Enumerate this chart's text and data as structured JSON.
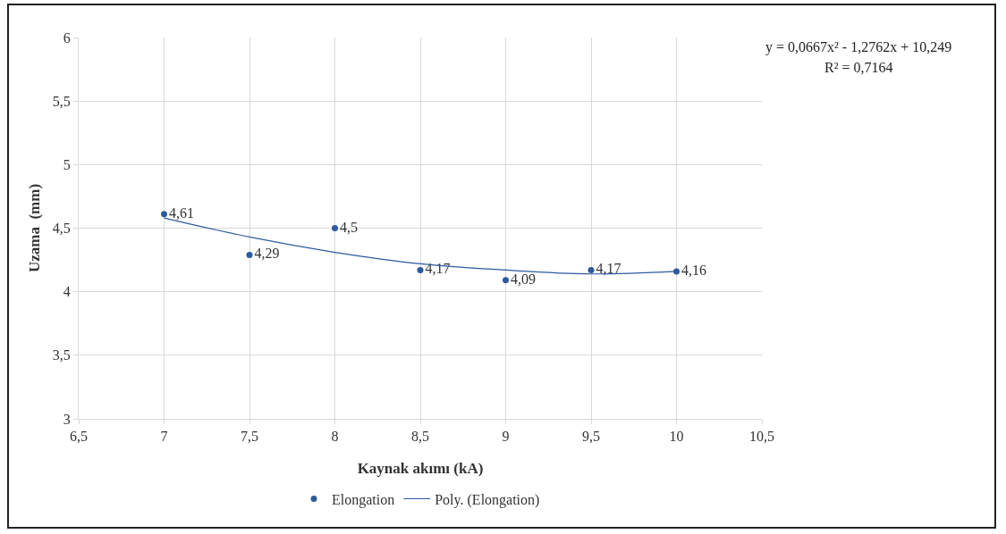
{
  "chart_data": {
    "type": "scatter",
    "xlabel": "Kaynak akımı (kA)",
    "ylabel": "Uzama  (mm)",
    "xlim": [
      6.5,
      10.5
    ],
    "xticks": [
      {
        "value": 6.5,
        "label": "6,5"
      },
      7,
      {
        "value": 7.5,
        "label": "7,5"
      },
      8,
      {
        "value": 8.5,
        "label": "8,5"
      },
      9,
      {
        "value": 9.5,
        "label": "9,5"
      },
      10,
      {
        "value": 10.5,
        "label": "10,5"
      }
    ],
    "ylim": [
      3,
      6
    ],
    "yticks": [
      3,
      {
        "value": 3.5,
        "label": "3,5"
      },
      4,
      {
        "value": 4.5,
        "label": "4,5"
      },
      5,
      {
        "value": 5.5,
        "label": "5,5"
      },
      6
    ],
    "grid": true,
    "legend": "bottom",
    "line_style": "solid",
    "series": [
      {
        "name": "Elongation",
        "marker": "circle",
        "color": "#2e5a9c",
        "x": [
          7,
          7.5,
          8,
          8.5,
          9,
          9.5,
          10
        ],
        "values": [
          4.61,
          4.29,
          4.5,
          4.17,
          4.09,
          4.17,
          4.16
        ],
        "value_labels": [
          "4,61",
          "4,29",
          "4,5",
          "4,17",
          "4,09",
          "4,17",
          "4,16"
        ]
      },
      {
        "name": "Poly. (Elongation)",
        "type": "line",
        "marker": "none",
        "color": "#2e5a9c",
        "x": [
          7,
          7.5,
          8,
          8.5,
          9,
          9.5,
          10
        ],
        "values": [
          4.58,
          4.43,
          4.31,
          4.22,
          4.17,
          4.14,
          4.16
        ]
      }
    ],
    "annotations": [
      "y = 0,0667x² - 1,2762x + 10,249",
      "R² = 0,7164"
    ]
  }
}
